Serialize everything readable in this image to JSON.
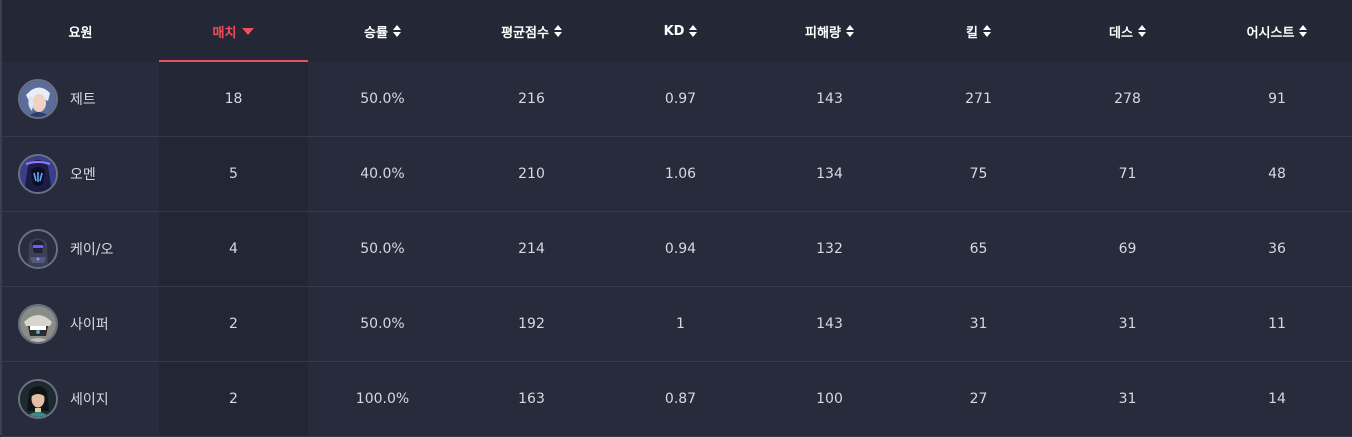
{
  "columns": [
    {
      "label": "요원"
    },
    {
      "label": "매치"
    },
    {
      "label": "승률"
    },
    {
      "label": "평균점수"
    },
    {
      "label": "KD"
    },
    {
      "label": "피해량"
    },
    {
      "label": "킬"
    },
    {
      "label": "데스"
    },
    {
      "label": "어시스트"
    }
  ],
  "sorted_column": "매치",
  "accent_color": "#ef4f5c",
  "rows": [
    {
      "agent": "제트",
      "matches": "18",
      "winrate": "50.0%",
      "avg_score": "216",
      "kd": "0.97",
      "damage": "143",
      "kills": "271",
      "deaths": "278",
      "assists": "91"
    },
    {
      "agent": "오멘",
      "matches": "5",
      "winrate": "40.0%",
      "avg_score": "210",
      "kd": "1.06",
      "damage": "134",
      "kills": "75",
      "deaths": "71",
      "assists": "48"
    },
    {
      "agent": "케이/오",
      "matches": "4",
      "winrate": "50.0%",
      "avg_score": "214",
      "kd": "0.94",
      "damage": "132",
      "kills": "65",
      "deaths": "69",
      "assists": "36"
    },
    {
      "agent": "사이퍼",
      "matches": "2",
      "winrate": "50.0%",
      "avg_score": "192",
      "kd": "1",
      "damage": "143",
      "kills": "31",
      "deaths": "31",
      "assists": "11"
    },
    {
      "agent": "세이지",
      "matches": "2",
      "winrate": "100.0%",
      "avg_score": "163",
      "kd": "0.87",
      "damage": "100",
      "kills": "27",
      "deaths": "31",
      "assists": "14"
    }
  ]
}
